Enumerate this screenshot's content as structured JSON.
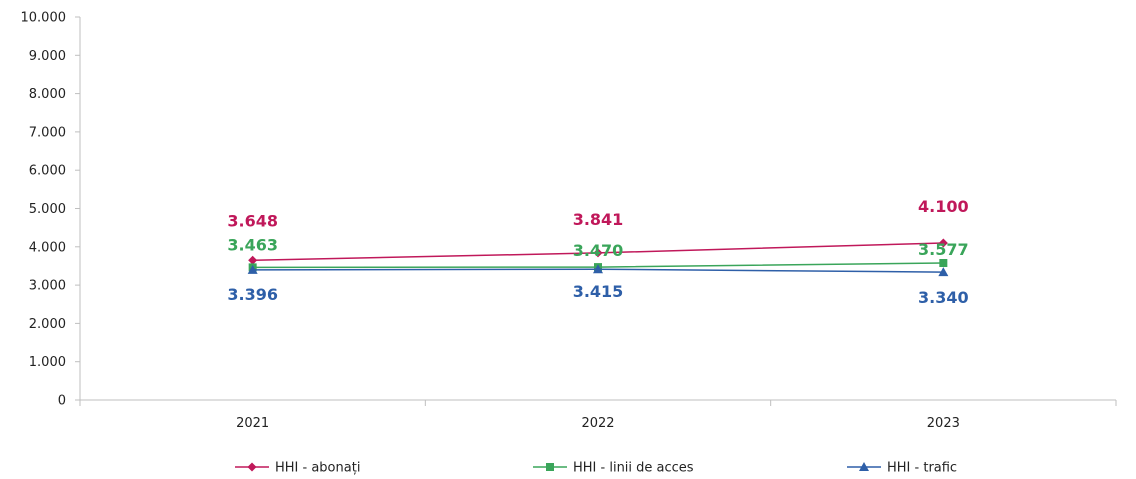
{
  "chart_data": {
    "type": "line",
    "categories": [
      "2021",
      "2022",
      "2023"
    ],
    "ylim": [
      0,
      10000
    ],
    "ytick_values": [
      0,
      1000,
      2000,
      3000,
      4000,
      5000,
      6000,
      7000,
      8000,
      9000,
      10000
    ],
    "ytick_labels": [
      "0",
      "1.000",
      "2.000",
      "3.000",
      "4.000",
      "5.000",
      "6.000",
      "7.000",
      "8.000",
      "9.000",
      "10.000"
    ],
    "grid": false,
    "legend_position": "bottom",
    "series": [
      {
        "name": "HHI - abonați",
        "color": "#c0185a",
        "label_color": "#c0185a",
        "marker": "diamond",
        "values": [
          3648,
          3841,
          4100
        ],
        "labels": [
          "3.648",
          "3.841",
          "4.100"
        ]
      },
      {
        "name": "HHI - linii de acces",
        "color": "#3aa55a",
        "label_color": "#3aa55a",
        "marker": "square",
        "values": [
          3463,
          3470,
          3577
        ],
        "labels": [
          "3.463",
          "3.470",
          "3.577"
        ]
      },
      {
        "name": "HHI - trafic",
        "color": "#2e5fa8",
        "label_color": "#2e5fa8",
        "marker": "triangle",
        "values": [
          3396,
          3415,
          3340
        ],
        "labels": [
          "3.396",
          "3.415",
          "3.340"
        ]
      }
    ]
  }
}
